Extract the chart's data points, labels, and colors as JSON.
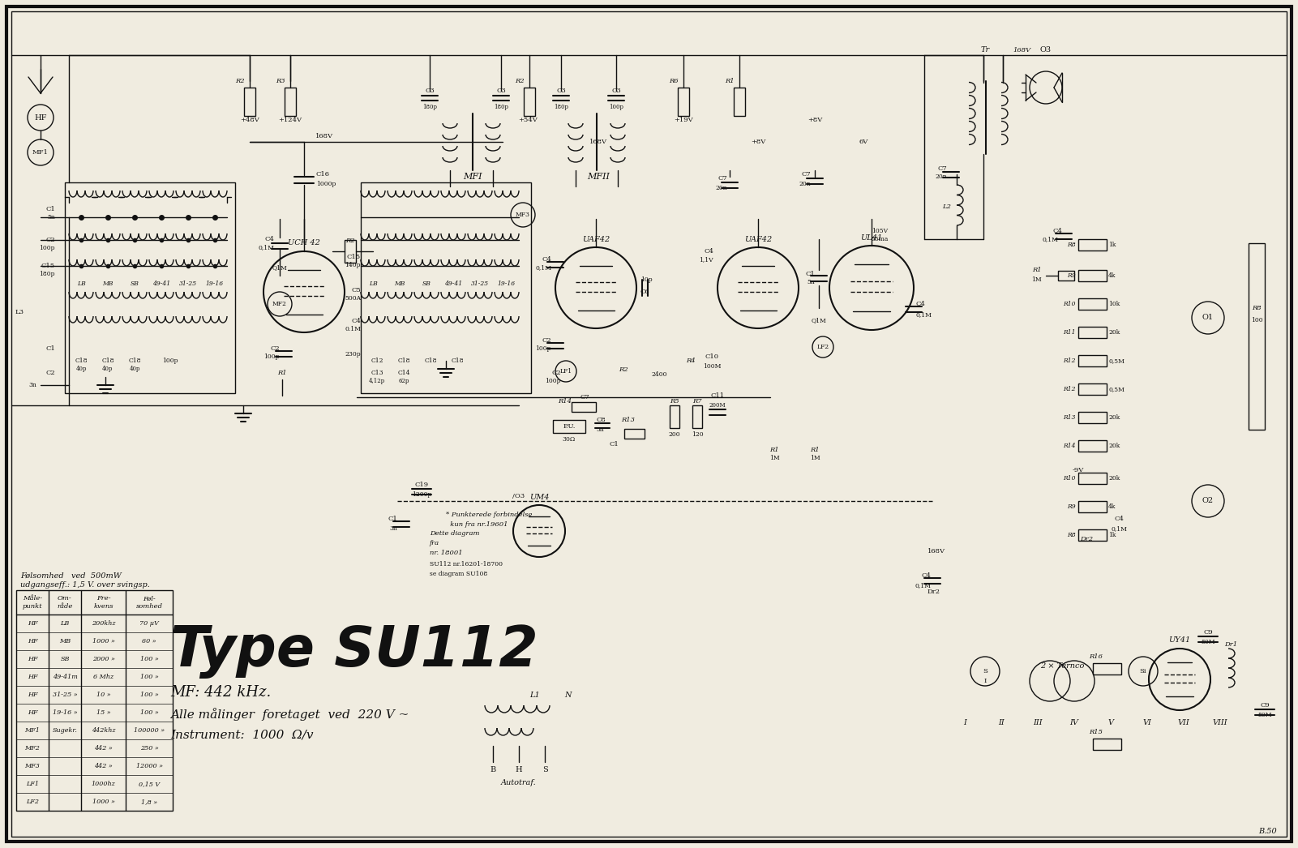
{
  "title": "Type SU112",
  "subtitle1": "MF: 442 kHz.",
  "subtitle2": "Alle målinger  foretaget  ved  220 V ~",
  "subtitle3": "Instrument:  1000  Ω/v",
  "bg_color": "#f0ece0",
  "line_color": "#111111",
  "border_color": "#000000",
  "sensitivity_text1": "Følsomhed   ved  500mW",
  "sensitivity_text2": "udgangseff.: 1,5 V. over svingsp.",
  "table_rows": [
    [
      "HF",
      "LB",
      "200khz",
      "70 μV"
    ],
    [
      "HF",
      "MB",
      "1000 »",
      "60 »"
    ],
    [
      "HF",
      "SB",
      "2000 »",
      "100 »"
    ],
    [
      "HF",
      "49-41m",
      "6 Mhz",
      "100 »"
    ],
    [
      "HF",
      "31-25 »",
      "10 »",
      "100 »"
    ],
    [
      "HF",
      "19-16 »",
      "15 »",
      "100 »"
    ],
    [
      "MF1",
      "Sugekr.",
      "442khz",
      "100000 »"
    ],
    [
      "MF2",
      "",
      "442 »",
      "250 »"
    ],
    [
      "MF3",
      "",
      "442 »",
      "12000 »"
    ],
    [
      "LF1",
      "",
      "1000hz",
      "0,15 V"
    ],
    [
      "LF2",
      "",
      "1000 »",
      "1,8 »"
    ]
  ],
  "note_text1": "Dette diagram",
  "note_text2": "fra",
  "note_text3": "nr. 18001",
  "note_text4": "SU112 nr.16201-18700",
  "note_text5": "se diagram SU108",
  "dotted_note1": "* Punkterede forbindelse",
  "dotted_note2": "  kun fra nr.19601",
  "autotraf_label": "Autotraf.",
  "fig_width": 16.01,
  "fig_height": 10.46,
  "dpi": 100
}
